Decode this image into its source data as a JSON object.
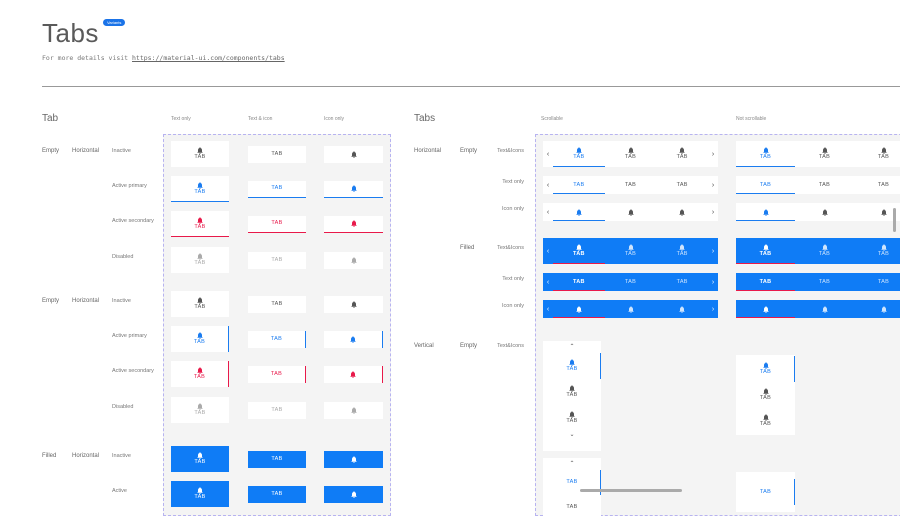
{
  "header": {
    "title": "Tabs",
    "badge": "Variants",
    "subtitle_prefix": "For more details visit ",
    "link": "https://material-ui.com/components/tabs"
  },
  "colors": {
    "primary": "#1a7cf0",
    "secondary": "#e8194a",
    "filled_bg": "#0f7cf6",
    "inactive": "#555555",
    "disabled": "#aaaaaa",
    "panel_border": "#b7b3f0"
  },
  "tab_label": "TAB",
  "icons": {
    "tab": "bell-icon",
    "prev": "chevron-left-icon",
    "next": "chevron-right-icon",
    "up": "chevron-up-icon",
    "down": "chevron-down-icon"
  },
  "tab_section": {
    "title": "Tab",
    "columns": [
      "Text only",
      "Text & icon",
      "Icon only"
    ],
    "groups": [
      {
        "variant": "Empty",
        "orientation": "Horizontal",
        "indicator": "bottom",
        "states": [
          "Inactive",
          "Active primary",
          "Active secondary",
          "Disabled"
        ]
      },
      {
        "variant": "Empty",
        "orientation": "Horizontal",
        "indicator": "right",
        "states": [
          "Inactive",
          "Active primary",
          "Active secondary",
          "Disabled"
        ]
      },
      {
        "variant": "Filled",
        "orientation": "Horizontal",
        "indicator": "none",
        "states": [
          "Inactive",
          "Active"
        ]
      }
    ]
  },
  "tabs_section": {
    "title": "Tabs",
    "columns": [
      "Scrollable",
      "Not scrollable"
    ],
    "rows": [
      {
        "orientation": "Horizontal",
        "variant": "Empty",
        "type": "Text&Icons"
      },
      {
        "orientation": "",
        "variant": "",
        "type": "Text only"
      },
      {
        "orientation": "",
        "variant": "",
        "type": "Icon only"
      },
      {
        "orientation": "",
        "variant": "Filled",
        "type": "Text&Icons"
      },
      {
        "orientation": "",
        "variant": "",
        "type": "Text only"
      },
      {
        "orientation": "",
        "variant": "",
        "type": "Icon only"
      },
      {
        "orientation": "Vertical",
        "variant": "Empty",
        "type": "Text&Icons"
      }
    ]
  }
}
